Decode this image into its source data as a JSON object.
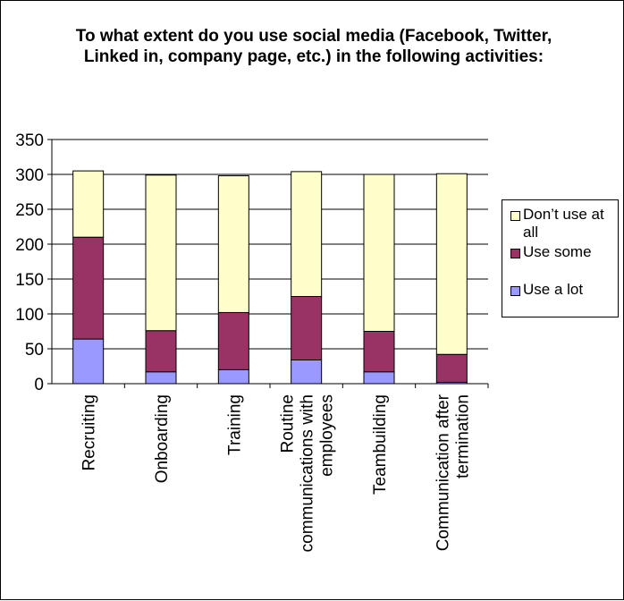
{
  "chart_data": {
    "type": "bar",
    "stacked": true,
    "title": "To what extent do you use social media (Facebook, Twitter, Linked in, company page, etc.) in the following activities:",
    "categories": [
      "Recruiting",
      "Onboarding",
      "Training",
      [
        "Routine",
        "communications with",
        "employees"
      ],
      "Teambuilding",
      [
        "Communication after",
        "termination"
      ]
    ],
    "series": [
      {
        "name": "Use a lot",
        "color": "#9999ff",
        "values": [
          64,
          17,
          20,
          34,
          17,
          2
        ]
      },
      {
        "name": "Use some",
        "color": "#993366",
        "values": [
          146,
          59,
          82,
          91,
          58,
          40
        ]
      },
      {
        "name": "Don’t use at all",
        "color": "#ffffcc",
        "values": [
          95,
          223,
          196,
          179,
          225,
          259
        ]
      }
    ],
    "ylim": [
      0,
      350
    ],
    "yticks": [
      "0",
      "50",
      "100",
      "150",
      "200",
      "250",
      "300",
      "350"
    ],
    "grid": true,
    "legend_position": "right",
    "legend_order": [
      "Don’t use at all",
      "Use some",
      "Use a lot"
    ],
    "legend_lines": [
      [
        "Don’t use at",
        "all"
      ],
      [
        "Use some"
      ],
      [
        "Use a lot"
      ]
    ]
  }
}
